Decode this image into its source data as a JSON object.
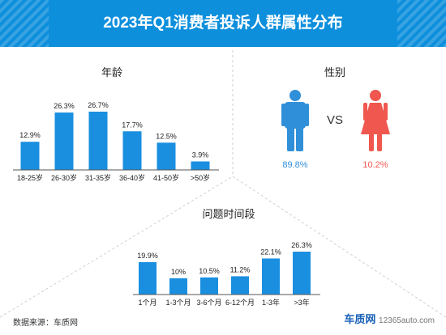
{
  "title": "2023年Q1消费者投诉人群属性分布",
  "source": "数据来源：车质网",
  "watermark": {
    "brand": "车质网",
    "site": "12365auto.com"
  },
  "colors": {
    "accent": "#0d8fdc",
    "bar": "#1a8fe0",
    "male": "#2f8fd8",
    "female": "#f0574e",
    "separator": "#cfcfcf"
  },
  "gender": {
    "title": "性别",
    "vs": "VS",
    "male_pct": "89.8%",
    "female_pct": "10.2%",
    "male_icon": "male-person-icon",
    "female_icon": "female-person-icon"
  },
  "chart_data": [
    {
      "type": "bar",
      "title": "年龄",
      "categories": [
        "18-25岁",
        "26-30岁",
        "31-35岁",
        "36-40岁",
        "41-50岁",
        ">50岁"
      ],
      "values": [
        12.9,
        26.3,
        26.7,
        17.7,
        12.5,
        3.9
      ],
      "labels": [
        "12.9%",
        "26.3%",
        "26.7%",
        "17.7%",
        "12.5%",
        "3.9%"
      ],
      "ylim": [
        0,
        26.7
      ]
    },
    {
      "type": "bar",
      "title": "问题时间段",
      "categories": [
        "1个月",
        "1-3个月",
        "3-6个月",
        "6-12个月",
        "1-3年",
        ">3年"
      ],
      "values": [
        19.9,
        10,
        10.5,
        11.2,
        22.1,
        26.3
      ],
      "labels": [
        "19.9%",
        "10%",
        "10.5%",
        "11.2%",
        "22.1%",
        "26.3%"
      ],
      "ylim": [
        0,
        26.3
      ]
    }
  ]
}
